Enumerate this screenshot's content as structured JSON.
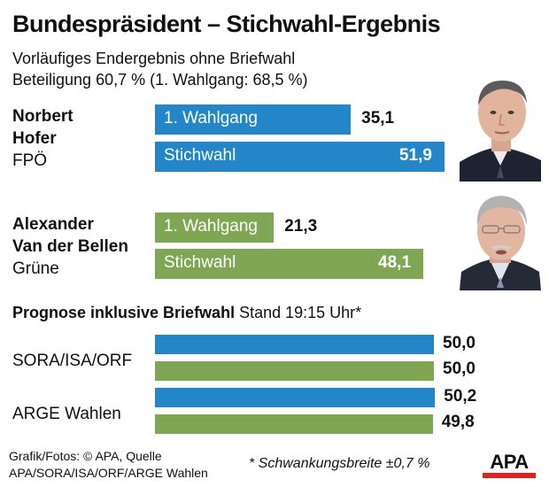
{
  "header": {
    "title": "Bundespräsident – Stichwahl-Ergebnis",
    "subtitle_line1": "Vorläufiges Endergebnis ohne Briefwahl",
    "subtitle_line2": "Beteiligung 60,7 % (1. Wahlgang: 68,5 %)"
  },
  "colors": {
    "hofer": "#2286c8",
    "vdb": "#7fa653",
    "apa_red": "#e3201b"
  },
  "candidates": [
    {
      "name_line1": "Norbert",
      "name_line2": "Hofer",
      "party": "FPÖ",
      "photo_icon": "portrait-photo",
      "bars": [
        {
          "label": "1. Wahlgang",
          "value": 35.1,
          "display": "35,1"
        },
        {
          "label": "Stichwahl",
          "value": 51.9,
          "display": "51,9"
        }
      ]
    },
    {
      "name_line1": "Alexander",
      "name_line2": "Van der Bellen",
      "party": "Grüne",
      "photo_icon": "portrait-photo",
      "bars": [
        {
          "label": "1. Wahlgang",
          "value": 21.3,
          "display": "21,3"
        },
        {
          "label": "Stichwahl",
          "value": 48.1,
          "display": "48,1"
        }
      ]
    }
  ],
  "forecast": {
    "heading_bold": "Prognose inklusive Briefwahl",
    "heading_rest": " Stand 19:15 Uhr*",
    "institutes": [
      {
        "name": "SORA/ISA/ORF",
        "hofer": 50.0,
        "hofer_display": "50,0",
        "vdb": 50.0,
        "vdb_display": "50,0"
      },
      {
        "name": "ARGE Wahlen",
        "hofer": 50.2,
        "hofer_display": "50,2",
        "vdb": 49.8,
        "vdb_display": "49,8"
      }
    ]
  },
  "footer": {
    "credit_line1": "Grafik/Fotos: © APA, Quelle",
    "credit_line2": "APA/SORA/ISA/ORF/ARGE Wahlen",
    "footnote": "* Schwankungsbreite ±0,7 %",
    "logo_text": "APA"
  },
  "chart_data": {
    "type": "bar",
    "orientation": "horizontal",
    "title": "Bundespräsident – Stichwahl-Ergebnis",
    "subtitle": "Vorläufiges Endergebnis ohne Briefwahl; Beteiligung 60,7 % (1. Wahlgang: 68,5 %)",
    "unit": "%",
    "categories": [
      "Norbert Hofer (FPÖ)",
      "Alexander Van der Bellen (Grüne)"
    ],
    "series": [
      {
        "name": "1. Wahlgang",
        "values": [
          35.1,
          21.3
        ]
      },
      {
        "name": "Stichwahl",
        "values": [
          51.9,
          48.1
        ]
      }
    ],
    "forecast": {
      "title": "Prognose inklusive Briefwahl Stand 19:15 Uhr*",
      "categories": [
        "SORA/ISA/ORF",
        "ARGE Wahlen"
      ],
      "series": [
        {
          "name": "Hofer",
          "values": [
            50.0,
            50.2
          ]
        },
        {
          "name": "Van der Bellen",
          "values": [
            50.0,
            49.8
          ]
        }
      ],
      "note": "* Schwankungsbreite ±0,7 %"
    },
    "xlim": [
      0,
      55
    ],
    "grid": false,
    "legend": "none"
  }
}
